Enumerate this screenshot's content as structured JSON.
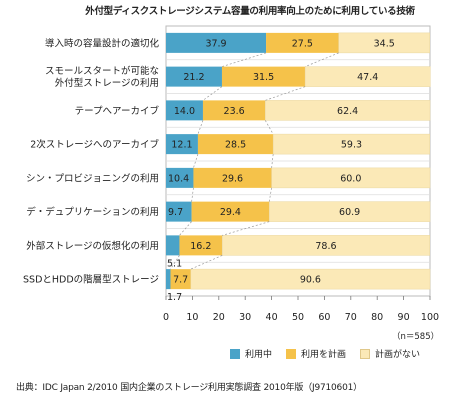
{
  "colors": {
    "in_use": "#4aa3c8",
    "planned": "#f5c24a",
    "no_plan": "#fbe9b7",
    "frame": "#bbbbbb",
    "grid": "#dddddd"
  },
  "legend": [
    {
      "label": "利用中",
      "color": "#4aa3c8"
    },
    {
      "label": "利用を計画",
      "color": "#f5c24a"
    },
    {
      "label": "計画がない",
      "color": "#fbe9b7"
    }
  ],
  "n_label": "（n＝585）",
  "source": "出典：IDC Japan 2/2010 国内企業のストレージ利用実態調査 2010年版（J9710601）",
  "chart_data": {
    "type": "bar",
    "orientation": "horizontal",
    "stacked": true,
    "title": "外付型ディスクストレージシステム容量の利用率向上のために利用している技術",
    "xlim": [
      0,
      100
    ],
    "xticks": [
      "0",
      "10",
      "20",
      "30",
      "40",
      "50",
      "60",
      "70",
      "80",
      "90",
      "100"
    ],
    "categories": [
      [
        "導入時の容量設計の適切化"
      ],
      [
        "スモールスタートが可能な",
        "外付型ストレージの利用"
      ],
      [
        "テープへアーカイブ"
      ],
      [
        "2次ストレージへのアーカイブ"
      ],
      [
        "シン・プロビジョニングの利用"
      ],
      [
        "デ・デュプリケーションの利用"
      ],
      [
        "外部ストレージの仮想化の利用"
      ],
      [
        "SSDとHDDの階層型ストレージ"
      ]
    ],
    "series": [
      {
        "name": "利用中",
        "values": [
          37.9,
          21.2,
          14.0,
          12.1,
          10.4,
          9.7,
          5.1,
          1.7
        ],
        "labels": [
          "37.9",
          "21.2",
          "14.0",
          "12.1",
          "10.4",
          "9.7",
          "5.1",
          "1.7"
        ]
      },
      {
        "name": "利用を計画",
        "values": [
          27.5,
          31.5,
          23.6,
          28.5,
          29.6,
          29.4,
          16.2,
          7.7
        ],
        "labels": [
          "27.5",
          "31.5",
          "23.6",
          "28.5",
          "29.6",
          "29.4",
          "16.2",
          "7.7"
        ]
      },
      {
        "name": "計画がない",
        "values": [
          34.5,
          47.4,
          62.4,
          59.3,
          60.0,
          60.9,
          78.6,
          90.6
        ],
        "labels": [
          "34.5",
          "47.4",
          "62.4",
          "59.3",
          "60.0",
          "60.9",
          "78.6",
          "90.6"
        ]
      }
    ]
  }
}
